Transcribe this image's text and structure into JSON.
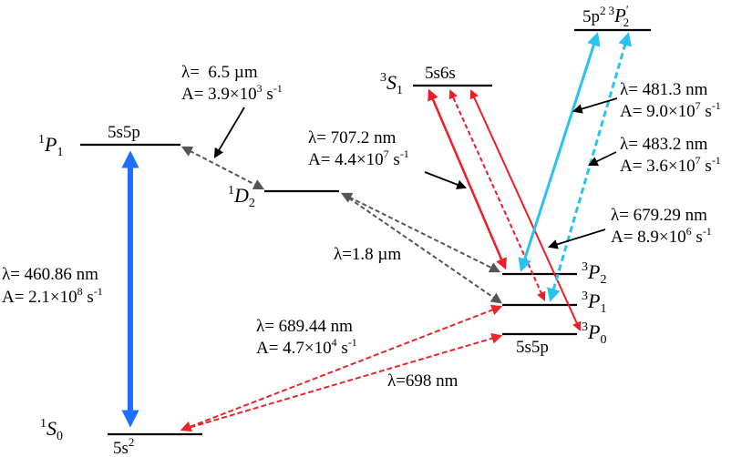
{
  "colors": {
    "level": "#000000",
    "blue": "#1f6fff",
    "cyan": "#29c3f0",
    "red": "#ee1c25",
    "red_dashed": "#e8262b",
    "gray_dashed": "#555555",
    "pointer": "#000000"
  },
  "levels": {
    "s0": {
      "term": "S",
      "sup": "1",
      "sub": "0",
      "config": "5s",
      "config_sup": "2"
    },
    "p1": {
      "term": "P",
      "sup": "1",
      "sub": "1",
      "config": "5s5p"
    },
    "d2": {
      "term": "D",
      "sup": "1",
      "sub": "2"
    },
    "s1": {
      "term": "S",
      "sup": "3",
      "sub": "1",
      "config": "5s6s"
    },
    "tp2": {
      "term": "P",
      "sup": "3",
      "sub": "2"
    },
    "tp1": {
      "term": "P",
      "sup": "3",
      "sub": "1"
    },
    "tp0": {
      "term": "P",
      "sup": "3",
      "sub": "0",
      "config": "5s5p"
    },
    "top": {
      "config": "5p",
      "config_sup": "2",
      "term": "P",
      "sup": "3",
      "sub": "2",
      "prime": "′"
    }
  },
  "transitions": {
    "t460": {
      "lambda": "λ= 460.86 nm",
      "A_pre": "A= 2.1×10",
      "A_exp": "8",
      "A_post": " s",
      "A_unit_exp": "-1"
    },
    "t6500": {
      "lambda": "λ=  6.5 µm",
      "A_pre": "A= 3.9×10",
      "A_exp": "3",
      "A_post": " s",
      "A_unit_exp": "-1"
    },
    "t707": {
      "lambda": "λ= 707.2 nm",
      "A_pre": "A= 4.4×10",
      "A_exp": "7",
      "A_post": " s",
      "A_unit_exp": "-1"
    },
    "t1800": {
      "lambda": "λ=1.8 µm"
    },
    "t689": {
      "lambda": "λ= 689.44 nm",
      "A_pre": "A= 4.7×10",
      "A_exp": "4",
      "A_post": " s",
      "A_unit_exp": "-1"
    },
    "t698": {
      "lambda": "λ=698 nm"
    },
    "t481": {
      "lambda": "λ= 481.3 nm",
      "A_pre": "A= 9.0×10",
      "A_exp": "7",
      "A_post": " s",
      "A_unit_exp": "-1"
    },
    "t483": {
      "lambda": "λ= 483.2 nm",
      "A_pre": "A= 3.6×10",
      "A_exp": "7",
      "A_post": " s",
      "A_unit_exp": "-1"
    },
    "t679": {
      "lambda": "λ= 679.29 nm",
      "A_pre": "A= 8.9×10",
      "A_exp": "6",
      "A_post": " s",
      "A_unit_exp": "-1"
    }
  }
}
